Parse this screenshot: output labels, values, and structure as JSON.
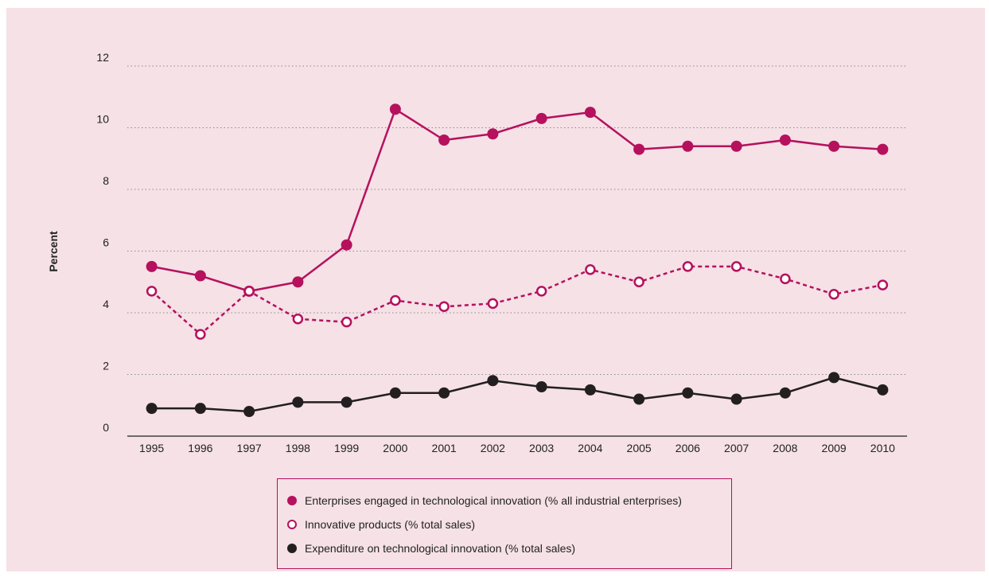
{
  "chart_data": {
    "type": "line",
    "title": "",
    "xlabel": "",
    "ylabel": "Percent",
    "ylim": [
      0,
      12
    ],
    "yticks": [
      0,
      2,
      4,
      6,
      8,
      10,
      12
    ],
    "grid": "horizontal-dotted",
    "legend_position": "bottom-center",
    "categories": [
      "1995",
      "1996",
      "1997",
      "1998",
      "1999",
      "2000",
      "2001",
      "2002",
      "2003",
      "2004",
      "2005",
      "2006",
      "2007",
      "2008",
      "2009",
      "2010"
    ],
    "series": [
      {
        "name": "Enterprises engaged in technological innovation (% all industrial enterprises)",
        "color": "#b5115d",
        "marker": "filled",
        "line_style": "solid",
        "values": [
          5.5,
          5.2,
          4.7,
          5.0,
          6.2,
          10.6,
          9.6,
          9.8,
          10.3,
          10.5,
          9.3,
          9.4,
          9.4,
          9.6,
          9.4,
          9.3
        ]
      },
      {
        "name": "Innovative products (% total sales)",
        "color": "#b5115d",
        "marker": "hollow",
        "line_style": "dashed",
        "values": [
          4.7,
          3.3,
          4.7,
          3.8,
          3.7,
          4.4,
          4.2,
          4.3,
          4.7,
          5.4,
          5.0,
          5.5,
          5.5,
          5.1,
          4.6,
          4.9
        ]
      },
      {
        "name": "Expenditure on technological innovation (% total sales)",
        "color": "#231f20",
        "marker": "filled",
        "line_style": "solid",
        "values": [
          0.9,
          0.9,
          0.8,
          1.1,
          1.1,
          1.4,
          1.4,
          1.8,
          1.6,
          1.5,
          1.2,
          1.4,
          1.2,
          1.4,
          1.9,
          1.5
        ]
      }
    ]
  }
}
